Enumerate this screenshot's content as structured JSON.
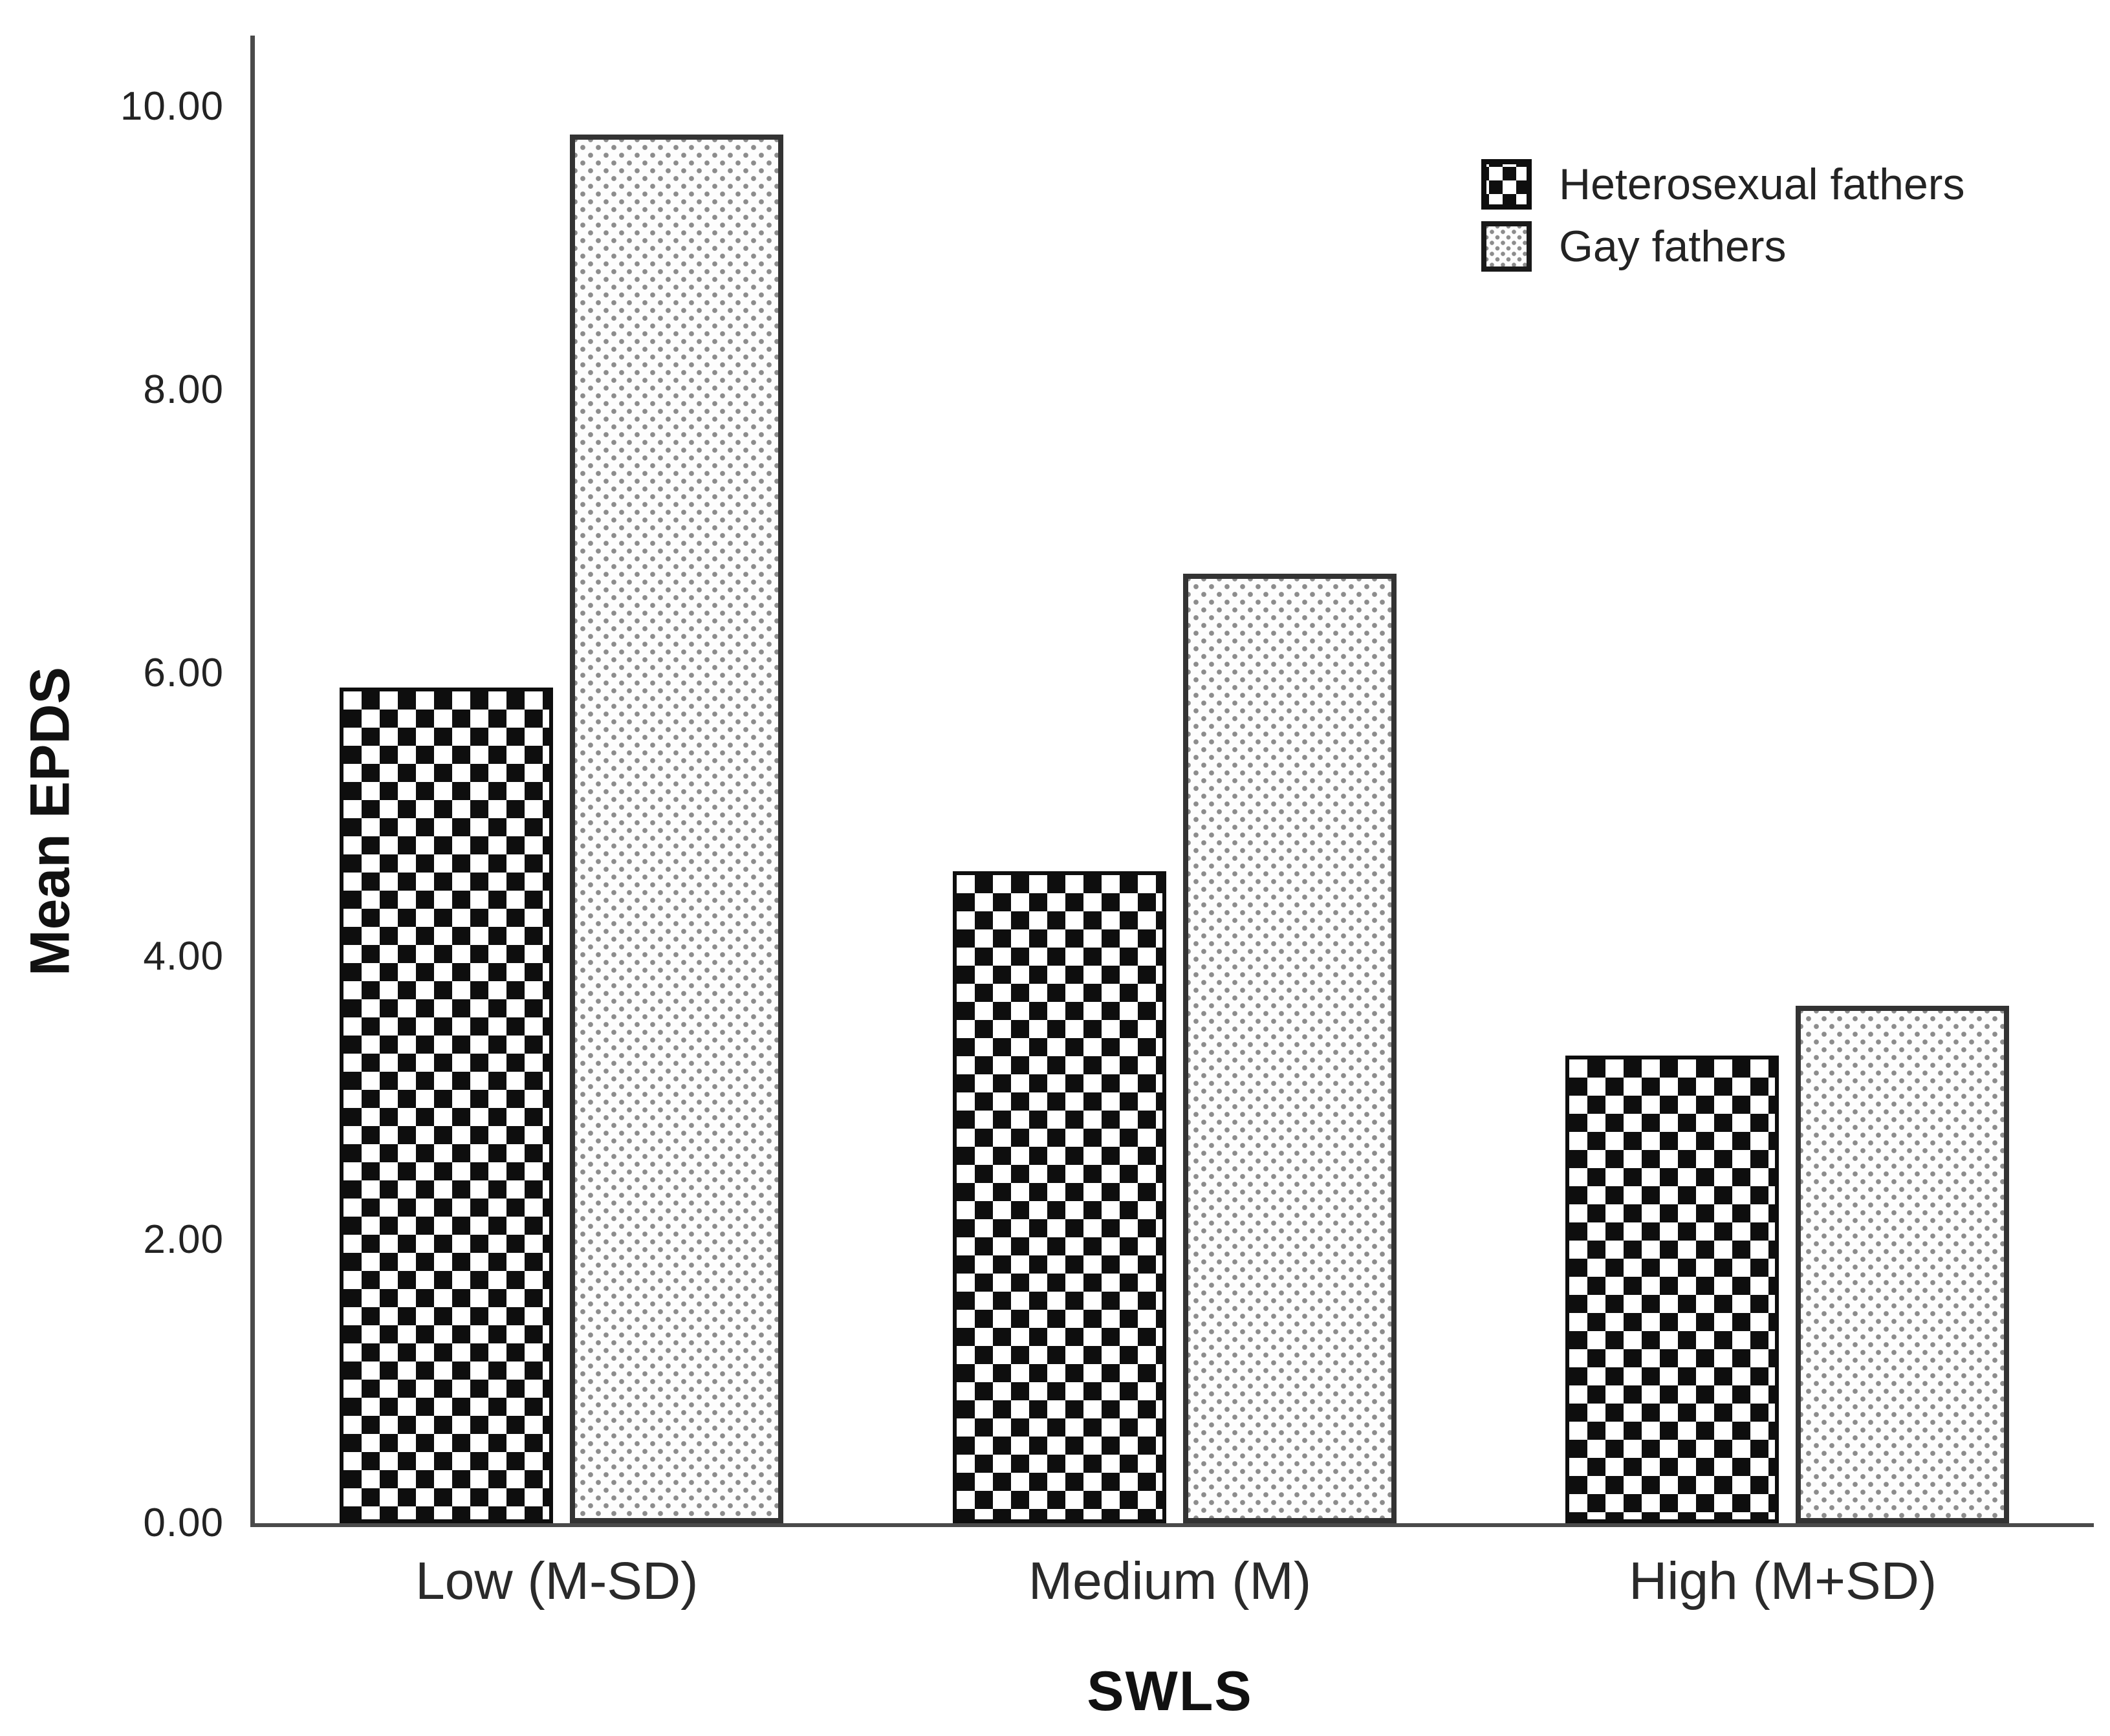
{
  "chart_data": {
    "type": "bar",
    "title": "",
    "categories": [
      "Low (M-SD)",
      "Medium (M)",
      "High (M+SD)"
    ],
    "series": [
      {
        "name": "Heterosexual fathers",
        "pattern": "checkerboard",
        "values": [
          5.9,
          4.6,
          3.3
        ]
      },
      {
        "name": "Gay fathers",
        "pattern": "dots",
        "values": [
          9.8,
          6.7,
          3.65
        ]
      }
    ],
    "xlabel": "SWLS",
    "ylabel": "Mean EPDS",
    "ylim": [
      0,
      10.5
    ],
    "yticks": [
      0,
      2,
      4,
      6,
      8,
      10
    ],
    "ytick_labels": [
      "0.00",
      "2.00",
      "4.00",
      "6.00",
      "8.00",
      "10.00"
    ],
    "grid": false,
    "legend_position": "top-right"
  },
  "colors": {
    "background": "#ffffff",
    "axis_line": "#4a4a4a",
    "tick_text": "#232323",
    "title_text": "#111111",
    "checkerboard_fill": "#0e0e0e",
    "dot_fill": "#8c8c8c",
    "bar_border_checkerboard": "#0e0e0e",
    "bar_border_dots": "#333333"
  }
}
